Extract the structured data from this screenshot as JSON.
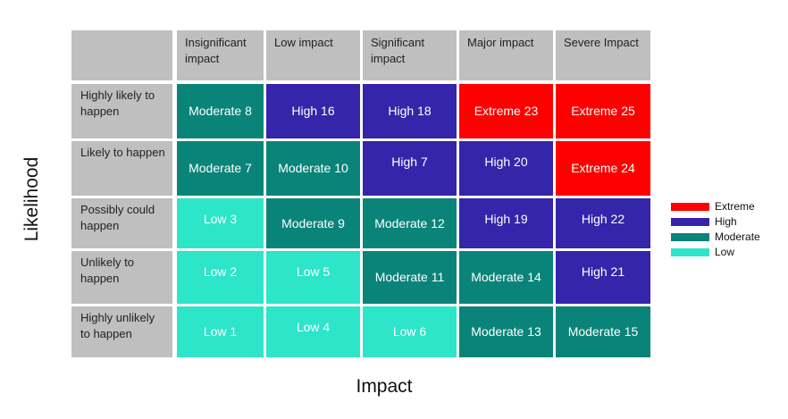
{
  "axis": {
    "x_label": "Impact",
    "y_label": "Likelihood"
  },
  "colors": {
    "Extreme": "#ff0000",
    "High": "#3425aa",
    "Moderate": "#0a8478",
    "Low": "#2de5c8"
  },
  "columns": [
    "Insignificant impact",
    "Low impact",
    "Significant impact",
    "Major impact",
    "Severe Impact"
  ],
  "rows": [
    {
      "label": "Highly likely to happen",
      "cells": [
        {
          "level": "Moderate",
          "text": "Moderate 8"
        },
        {
          "level": "High",
          "text": "High 16"
        },
        {
          "level": "High",
          "text": "High 18"
        },
        {
          "level": "Extreme",
          "text": "Extreme 23"
        },
        {
          "level": "Extreme",
          "text": "Extreme 25"
        }
      ]
    },
    {
      "label": "Likely to happen",
      "cells": [
        {
          "level": "Moderate",
          "text": "Moderate 7"
        },
        {
          "level": "Moderate",
          "text": "Moderate 10"
        },
        {
          "level": "High",
          "text": "High 7",
          "up": true
        },
        {
          "level": "High",
          "text": "High 20",
          "up": true
        },
        {
          "level": "Extreme",
          "text": "Extreme 24"
        }
      ]
    },
    {
      "label": "Possibly could happen",
      "cells": [
        {
          "level": "Low",
          "text": "Low 3",
          "up": true
        },
        {
          "level": "Moderate",
          "text": "Moderate 9"
        },
        {
          "level": "Moderate",
          "text": "Moderate 12"
        },
        {
          "level": "High",
          "text": "High 19",
          "up": true
        },
        {
          "level": "High",
          "text": "High 22",
          "up": true
        }
      ]
    },
    {
      "label": "Unlikely to happen",
      "cells": [
        {
          "level": "Low",
          "text": "Low 2",
          "up": true
        },
        {
          "level": "Low",
          "text": "Low 5",
          "up": true
        },
        {
          "level": "Moderate",
          "text": "Moderate 11"
        },
        {
          "level": "Moderate",
          "text": "Moderate 14"
        },
        {
          "level": "High",
          "text": "High 21",
          "up": true
        }
      ]
    },
    {
      "label": "Highly unlikely to happen",
      "cells": [
        {
          "level": "Low",
          "text": "Low 1"
        },
        {
          "level": "Low",
          "text": "Low 4",
          "up": true
        },
        {
          "level": "Low",
          "text": "Low 6"
        },
        {
          "level": "Moderate",
          "text": "Moderate 13"
        },
        {
          "level": "Moderate",
          "text": "Moderate 15"
        }
      ]
    }
  ],
  "legend": [
    "Extreme",
    "High",
    "Moderate",
    "Low"
  ]
}
